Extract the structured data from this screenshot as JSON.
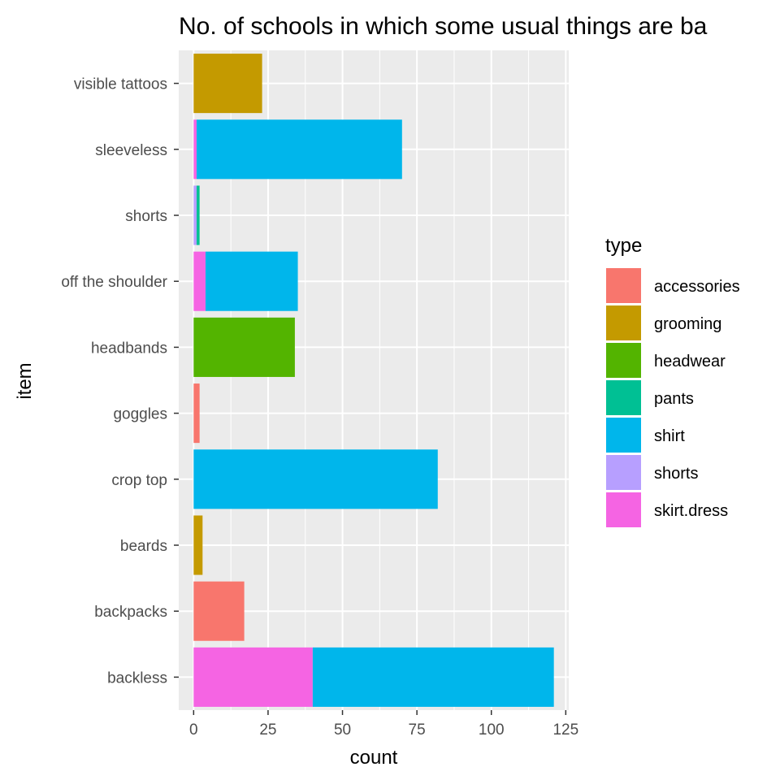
{
  "chart_data": {
    "type": "bar",
    "orientation": "horizontal",
    "stacked": true,
    "title": "No. of schools in which some usual things are ba",
    "xlabel": "count",
    "ylabel": "item",
    "xlim": [
      -5,
      126
    ],
    "xticks": [
      0,
      25,
      50,
      75,
      100,
      125
    ],
    "grid": true,
    "legend_position": "right",
    "legend_title": "type",
    "categories": [
      "backless",
      "backpacks",
      "beards",
      "crop top",
      "goggles",
      "headbands",
      "off the shoulder",
      "shorts",
      "sleeveless",
      "visible tattoos"
    ],
    "series": [
      {
        "name": "skirt.dress",
        "color": "#F564E3",
        "values": [
          40,
          0,
          0,
          0,
          0,
          0,
          4,
          0,
          1,
          0
        ]
      },
      {
        "name": "shorts",
        "color": "#B79FFF",
        "values": [
          0,
          0,
          0,
          0,
          0,
          0,
          0,
          1,
          0,
          0
        ]
      },
      {
        "name": "shirt",
        "color": "#00B6EB",
        "values": [
          81,
          0,
          0,
          82,
          0,
          0,
          31,
          0,
          69,
          0
        ]
      },
      {
        "name": "pants",
        "color": "#00C094",
        "values": [
          0,
          0,
          0,
          0,
          0,
          0,
          0,
          1,
          0,
          0
        ]
      },
      {
        "name": "headwear",
        "color": "#53B400",
        "values": [
          0,
          0,
          0,
          0,
          0,
          34,
          0,
          0,
          0,
          0
        ]
      },
      {
        "name": "grooming",
        "color": "#C49A00",
        "values": [
          0,
          0,
          3,
          0,
          0,
          0,
          0,
          0,
          0,
          23
        ]
      },
      {
        "name": "accessories",
        "color": "#F8766D",
        "values": [
          0,
          17,
          0,
          0,
          2,
          0,
          0,
          0,
          0,
          0
        ]
      }
    ],
    "legend_order": [
      "accessories",
      "grooming",
      "headwear",
      "pants",
      "shirt",
      "shorts",
      "skirt.dress"
    ]
  }
}
